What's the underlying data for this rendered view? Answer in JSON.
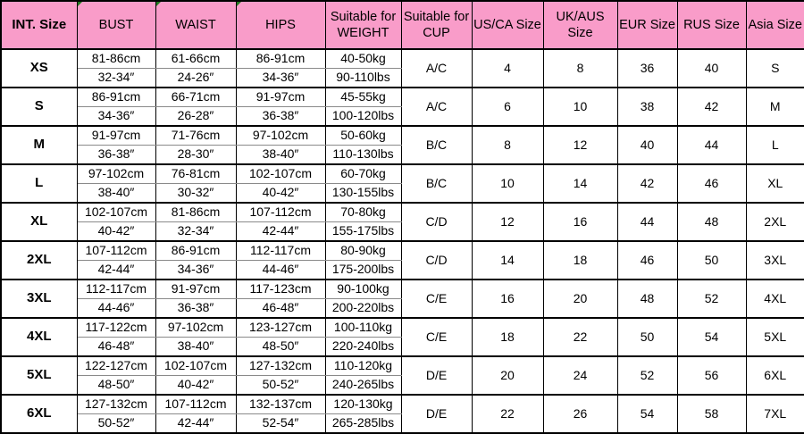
{
  "colors": {
    "header_pink": "#F99CC9",
    "border": "#000000",
    "sub_divider": "#8a8a8a",
    "flag_green": "#1f7a1f",
    "text": "#000000",
    "background": "#ffffff"
  },
  "chart_data": {
    "type": "table",
    "columns": [
      "INT. Size",
      "BUST",
      "WAIST",
      "HIPS",
      "Suitable for WEIGHT",
      "Suitable for CUP",
      "US/CA Size",
      "UK/AUS Size",
      "EUR Size",
      "RUS Size",
      "Asia Size"
    ],
    "headers": [
      {
        "id": "int-size",
        "lines": [
          "INT. Size"
        ],
        "bold": true,
        "flag": false
      },
      {
        "id": "bust",
        "lines": [
          "BUST"
        ],
        "bold": false,
        "flag": true
      },
      {
        "id": "waist",
        "lines": [
          "WAIST"
        ],
        "bold": false,
        "flag": true
      },
      {
        "id": "hips",
        "lines": [
          "HIPS"
        ],
        "bold": false,
        "flag": true
      },
      {
        "id": "weight",
        "lines": [
          "Suitable for",
          "WEIGHT"
        ],
        "bold": false,
        "flag": false
      },
      {
        "id": "cup",
        "lines": [
          "Suitable for",
          "CUP"
        ],
        "bold": false,
        "flag": false
      },
      {
        "id": "us-ca",
        "lines": [
          "US/CA Size"
        ],
        "bold": false,
        "flag": false
      },
      {
        "id": "uk-aus",
        "lines": [
          "UK/AUS",
          "Size"
        ],
        "bold": false,
        "flag": false
      },
      {
        "id": "eur",
        "lines": [
          "EUR Size"
        ],
        "bold": false,
        "flag": false
      },
      {
        "id": "rus",
        "lines": [
          "RUS Size"
        ],
        "bold": false,
        "flag": false
      },
      {
        "id": "asia",
        "lines": [
          "Asia Size"
        ],
        "bold": false,
        "flag": false
      }
    ],
    "rows": [
      {
        "size": "XS",
        "bust": [
          "81-86cm",
          "32-34″"
        ],
        "waist": [
          "61-66cm",
          "24-26″"
        ],
        "hips": [
          "86-91cm",
          "34-36″"
        ],
        "weight": [
          "40-50kg",
          "90-110lbs"
        ],
        "cup": "A/C",
        "us_ca": "4",
        "uk_aus": "8",
        "eur": "36",
        "rus": "40",
        "asia": "S"
      },
      {
        "size": "S",
        "bust": [
          "86-91cm",
          "34-36″"
        ],
        "waist": [
          "66-71cm",
          "26-28″"
        ],
        "hips": [
          "91-97cm",
          "36-38″"
        ],
        "weight": [
          "45-55kg",
          "100-120lbs"
        ],
        "cup": "A/C",
        "us_ca": "6",
        "uk_aus": "10",
        "eur": "38",
        "rus": "42",
        "asia": "M"
      },
      {
        "size": "M",
        "bust": [
          "91-97cm",
          "36-38″"
        ],
        "waist": [
          "71-76cm",
          "28-30″"
        ],
        "hips": [
          "97-102cm",
          "38-40″"
        ],
        "weight": [
          "50-60kg",
          "110-130lbs"
        ],
        "cup": "B/C",
        "us_ca": "8",
        "uk_aus": "12",
        "eur": "40",
        "rus": "44",
        "asia": "L"
      },
      {
        "size": "L",
        "bust": [
          "97-102cm",
          "38-40″"
        ],
        "waist": [
          "76-81cm",
          "30-32″"
        ],
        "hips": [
          "102-107cm",
          "40-42″"
        ],
        "weight": [
          "60-70kg",
          "130-155lbs"
        ],
        "cup": "B/C",
        "us_ca": "10",
        "uk_aus": "14",
        "eur": "42",
        "rus": "46",
        "asia": "XL"
      },
      {
        "size": "XL",
        "bust": [
          "102-107cm",
          "40-42″"
        ],
        "waist": [
          "81-86cm",
          "32-34″"
        ],
        "hips": [
          "107-112cm",
          "42-44″"
        ],
        "weight": [
          "70-80kg",
          "155-175lbs"
        ],
        "cup": "C/D",
        "us_ca": "12",
        "uk_aus": "16",
        "eur": "44",
        "rus": "48",
        "asia": "2XL"
      },
      {
        "size": "2XL",
        "bust": [
          "107-112cm",
          "42-44″"
        ],
        "waist": [
          "86-91cm",
          "34-36″"
        ],
        "hips": [
          "112-117cm",
          "44-46″"
        ],
        "weight": [
          "80-90kg",
          "175-200lbs"
        ],
        "cup": "C/D",
        "us_ca": "14",
        "uk_aus": "18",
        "eur": "46",
        "rus": "50",
        "asia": "3XL"
      },
      {
        "size": "3XL",
        "bust": [
          "112-117cm",
          "44-46″"
        ],
        "waist": [
          "91-97cm",
          "36-38″"
        ],
        "hips": [
          "117-123cm",
          "46-48″"
        ],
        "weight": [
          "90-100kg",
          "200-220lbs"
        ],
        "cup": "C/E",
        "us_ca": "16",
        "uk_aus": "20",
        "eur": "48",
        "rus": "52",
        "asia": "4XL"
      },
      {
        "size": "4XL",
        "bust": [
          "117-122cm",
          "46-48″"
        ],
        "waist": [
          "97-102cm",
          "38-40″"
        ],
        "hips": [
          "123-127cm",
          "48-50″"
        ],
        "weight": [
          "100-110kg",
          "220-240lbs"
        ],
        "cup": "C/E",
        "us_ca": "18",
        "uk_aus": "22",
        "eur": "50",
        "rus": "54",
        "asia": "5XL"
      },
      {
        "size": "5XL",
        "bust": [
          "122-127cm",
          "48-50″"
        ],
        "waist": [
          "102-107cm",
          "40-42″"
        ],
        "hips": [
          "127-132cm",
          "50-52″"
        ],
        "weight": [
          "110-120kg",
          "240-265lbs"
        ],
        "cup": "D/E",
        "us_ca": "20",
        "uk_aus": "24",
        "eur": "52",
        "rus": "56",
        "asia": "6XL"
      },
      {
        "size": "6XL",
        "bust": [
          "127-132cm",
          "50-52″"
        ],
        "waist": [
          "107-112cm",
          "42-44″"
        ],
        "hips": [
          "132-137cm",
          "52-54″"
        ],
        "weight": [
          "120-130kg",
          "265-285lbs"
        ],
        "cup": "D/E",
        "us_ca": "22",
        "uk_aus": "26",
        "eur": "54",
        "rus": "58",
        "asia": "7XL"
      }
    ]
  }
}
